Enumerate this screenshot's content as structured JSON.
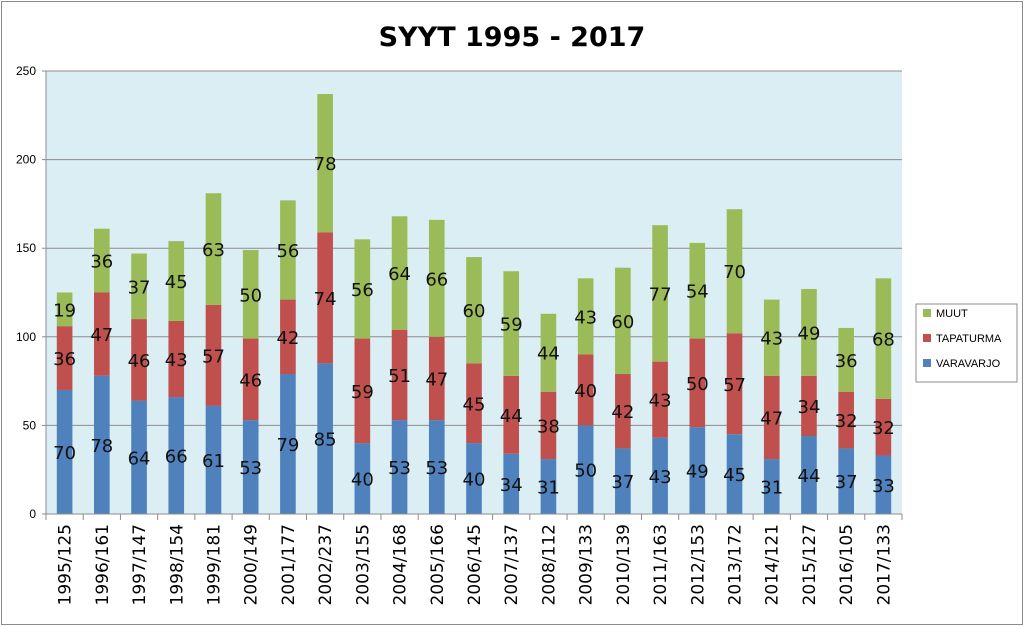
{
  "chart_data": {
    "type": "bar",
    "stacked": true,
    "title": "SYYT 1995 - 2017",
    "xlabel": "",
    "ylabel": "",
    "ylim": [
      0,
      250
    ],
    "yticks": [
      "0",
      "50",
      "100",
      "150",
      "200",
      "250"
    ],
    "grid": true,
    "legend_position": "right",
    "plot_background": "#dbeef4",
    "categories": [
      "1995/125",
      "1996/161",
      "1997/147",
      "1998/154",
      "1999/181",
      "2000/149",
      "2001/177",
      "2002/237",
      "2003/155",
      "2004/168",
      "2005/166",
      "2006/145",
      "2007/137",
      "2008/112",
      "2009/133",
      "2010/139",
      "2011/163",
      "2012/153",
      "2013/172",
      "2014/121",
      "2015/127",
      "2016/105",
      "2017/133"
    ],
    "series": [
      {
        "name": "VARAVARJO",
        "color": "#4f81bd",
        "values": [
          70,
          78,
          64,
          66,
          61,
          53,
          79,
          85,
          40,
          53,
          53,
          40,
          34,
          31,
          50,
          37,
          43,
          49,
          45,
          31,
          44,
          37,
          33
        ]
      },
      {
        "name": "TAPATURMA",
        "color": "#c0504d",
        "values": [
          36,
          47,
          46,
          43,
          57,
          46,
          42,
          74,
          59,
          51,
          47,
          45,
          44,
          38,
          40,
          42,
          43,
          50,
          57,
          47,
          34,
          32,
          32
        ]
      },
      {
        "name": "MUUT",
        "color": "#9bbb59",
        "values": [
          19,
          36,
          37,
          45,
          63,
          50,
          56,
          78,
          56,
          64,
          66,
          60,
          59,
          44,
          43,
          60,
          77,
          54,
          70,
          43,
          49,
          36,
          68
        ]
      }
    ]
  }
}
